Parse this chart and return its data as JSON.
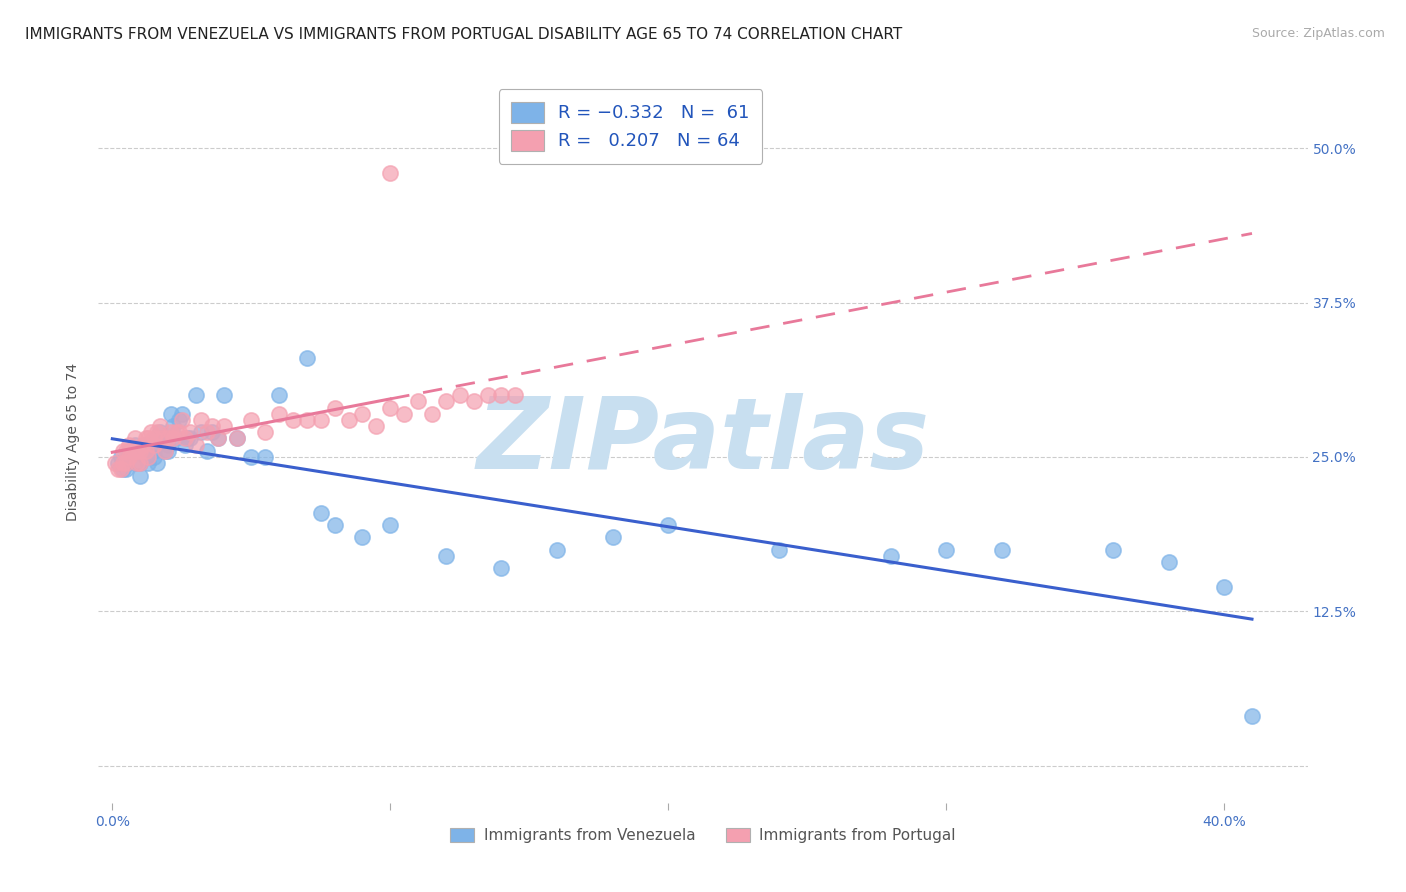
{
  "title": "IMMIGRANTS FROM VENEZUELA VS IMMIGRANTS FROM PORTUGAL DISABILITY AGE 65 TO 74 CORRELATION CHART",
  "source": "Source: ZipAtlas.com",
  "ylabel": "Disability Age 65 to 74",
  "y_ticks": [
    0.0,
    0.125,
    0.25,
    0.375,
    0.5
  ],
  "y_tick_labels": [
    "",
    "12.5%",
    "25.0%",
    "37.5%",
    "50.0%"
  ],
  "xlim": [
    -0.005,
    0.43
  ],
  "ylim": [
    -0.03,
    0.555
  ],
  "venezuela_color": "#7eb3e8",
  "portugal_color": "#f4a0b0",
  "trend_venezuela_color": "#3a5fcd",
  "trend_portugal_color": "#e8799a",
  "background_color": "#ffffff",
  "grid_color": "#cccccc",
  "title_fontsize": 11,
  "label_fontsize": 10,
  "tick_fontsize": 10,
  "source_fontsize": 9,
  "watermark_text": "ZIPatlas",
  "watermark_color": "#c8dff0",
  "watermark_fontsize": 72,
  "venezuela_scatter_x": [
    0.002,
    0.003,
    0.004,
    0.005,
    0.006,
    0.007,
    0.008,
    0.008,
    0.009,
    0.01,
    0.01,
    0.011,
    0.012,
    0.012,
    0.013,
    0.014,
    0.015,
    0.015,
    0.016,
    0.016,
    0.017,
    0.018,
    0.019,
    0.02,
    0.02,
    0.021,
    0.022,
    0.023,
    0.024,
    0.025,
    0.026,
    0.027,
    0.028,
    0.03,
    0.032,
    0.034,
    0.036,
    0.038,
    0.04,
    0.045,
    0.05,
    0.055,
    0.06,
    0.07,
    0.075,
    0.08,
    0.09,
    0.1,
    0.12,
    0.14,
    0.16,
    0.18,
    0.2,
    0.24,
    0.28,
    0.3,
    0.32,
    0.36,
    0.38,
    0.4,
    0.41
  ],
  "venezuela_scatter_y": [
    0.245,
    0.25,
    0.24,
    0.24,
    0.255,
    0.255,
    0.26,
    0.245,
    0.255,
    0.245,
    0.235,
    0.255,
    0.26,
    0.25,
    0.245,
    0.26,
    0.25,
    0.255,
    0.265,
    0.245,
    0.27,
    0.265,
    0.255,
    0.26,
    0.255,
    0.285,
    0.275,
    0.265,
    0.28,
    0.285,
    0.26,
    0.265,
    0.265,
    0.3,
    0.27,
    0.255,
    0.27,
    0.265,
    0.3,
    0.265,
    0.25,
    0.25,
    0.3,
    0.33,
    0.205,
    0.195,
    0.185,
    0.195,
    0.17,
    0.16,
    0.175,
    0.185,
    0.195,
    0.175,
    0.17,
    0.175,
    0.175,
    0.175,
    0.165,
    0.145,
    0.04
  ],
  "portugal_scatter_x": [
    0.001,
    0.002,
    0.003,
    0.004,
    0.004,
    0.005,
    0.005,
    0.006,
    0.006,
    0.007,
    0.008,
    0.008,
    0.009,
    0.009,
    0.01,
    0.01,
    0.011,
    0.012,
    0.012,
    0.013,
    0.013,
    0.014,
    0.015,
    0.015,
    0.016,
    0.017,
    0.018,
    0.019,
    0.02,
    0.021,
    0.022,
    0.023,
    0.024,
    0.025,
    0.026,
    0.028,
    0.03,
    0.032,
    0.034,
    0.036,
    0.038,
    0.04,
    0.045,
    0.05,
    0.055,
    0.06,
    0.065,
    0.07,
    0.075,
    0.08,
    0.085,
    0.09,
    0.095,
    0.1,
    0.105,
    0.11,
    0.115,
    0.12,
    0.125,
    0.13,
    0.135,
    0.14,
    0.145,
    0.1
  ],
  "portugal_scatter_y": [
    0.245,
    0.24,
    0.24,
    0.245,
    0.255,
    0.255,
    0.245,
    0.26,
    0.25,
    0.255,
    0.255,
    0.265,
    0.255,
    0.245,
    0.255,
    0.245,
    0.26,
    0.255,
    0.265,
    0.265,
    0.25,
    0.27,
    0.265,
    0.26,
    0.27,
    0.275,
    0.265,
    0.255,
    0.265,
    0.27,
    0.265,
    0.27,
    0.27,
    0.28,
    0.265,
    0.27,
    0.26,
    0.28,
    0.27,
    0.275,
    0.265,
    0.275,
    0.265,
    0.28,
    0.27,
    0.285,
    0.28,
    0.28,
    0.28,
    0.29,
    0.28,
    0.285,
    0.275,
    0.29,
    0.285,
    0.295,
    0.285,
    0.295,
    0.3,
    0.295,
    0.3,
    0.3,
    0.3,
    0.48
  ]
}
